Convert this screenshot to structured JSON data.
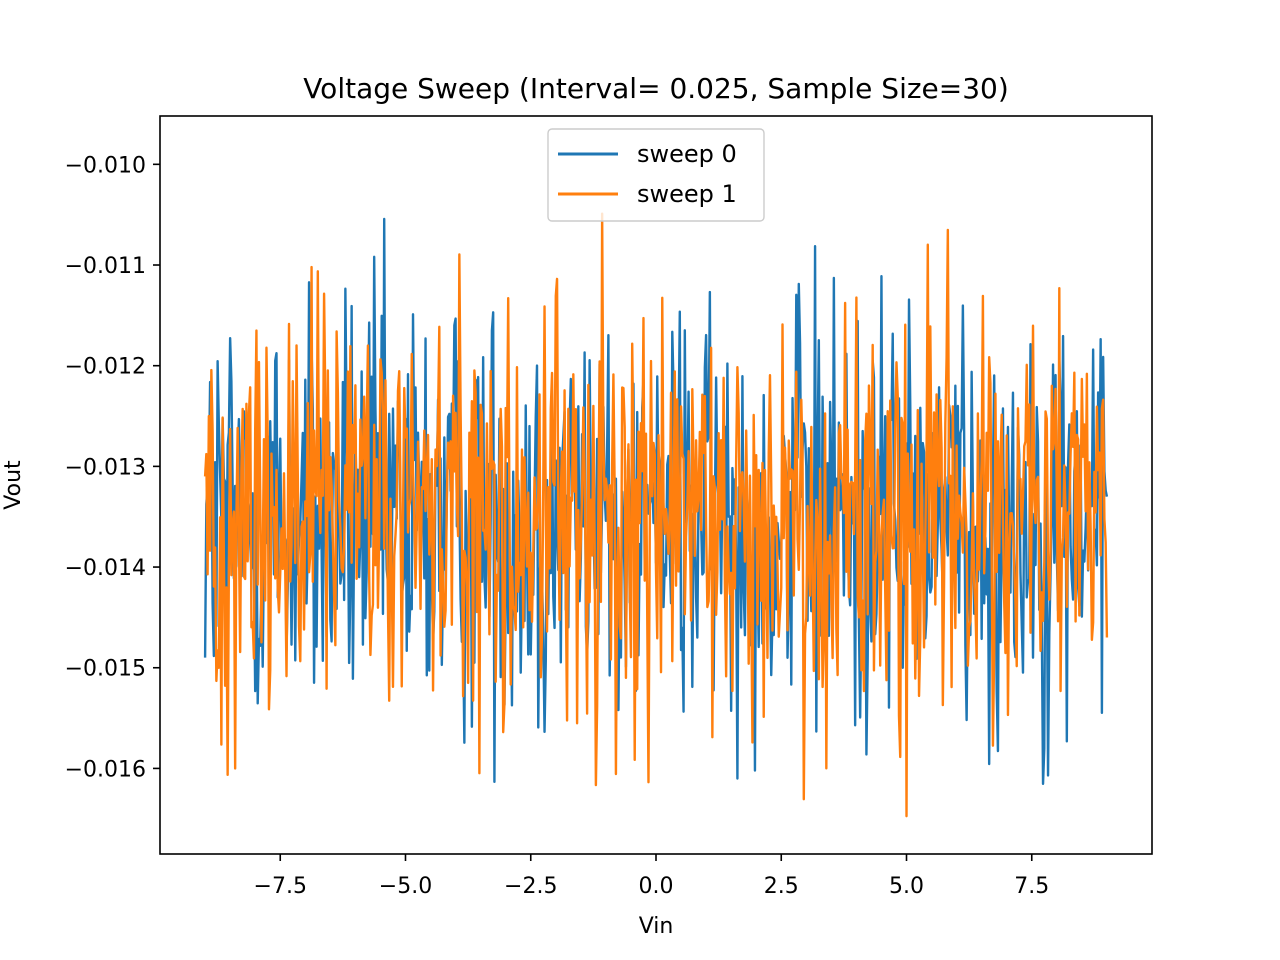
{
  "chart_data": {
    "type": "line",
    "title": "Voltage Sweep (Interval= 0.025, Sample Size=30)",
    "xlabel": "Vin",
    "ylabel": "Vout",
    "xlim": [
      -9.9,
      9.9
    ],
    "ylim": [
      -0.01685,
      -0.00952
    ],
    "x_ticks": [
      -7.5,
      -5.0,
      -2.5,
      0.0,
      2.5,
      5.0,
      7.5
    ],
    "x_tick_labels": [
      "−7.5",
      "−5.0",
      "−2.5",
      "0.0",
      "2.5",
      "5.0",
      "7.5"
    ],
    "y_ticks": [
      -0.01,
      -0.011,
      -0.012,
      -0.013,
      -0.014,
      -0.015,
      -0.016
    ],
    "y_tick_labels": [
      "−0.010",
      "−0.011",
      "−0.012",
      "−0.013",
      "−0.014",
      "−0.015",
      "−0.016"
    ],
    "grid": false,
    "legend_position": "upper center",
    "x_range": [
      -9.0,
      9.0
    ],
    "x_step": 0.025,
    "series": [
      {
        "name": "sweep 0",
        "color": "#1f77b4",
        "mean": -0.0135,
        "spread": 0.0011,
        "min": -0.0163,
        "max": -0.0099,
        "start": -0.0149,
        "end": -0.0133
      },
      {
        "name": "sweep 1",
        "color": "#ff7f0e",
        "mean": -0.0135,
        "spread": 0.0011,
        "min": -0.0165,
        "max": -0.0099,
        "start": -0.0131,
        "end": -0.0147
      }
    ]
  }
}
